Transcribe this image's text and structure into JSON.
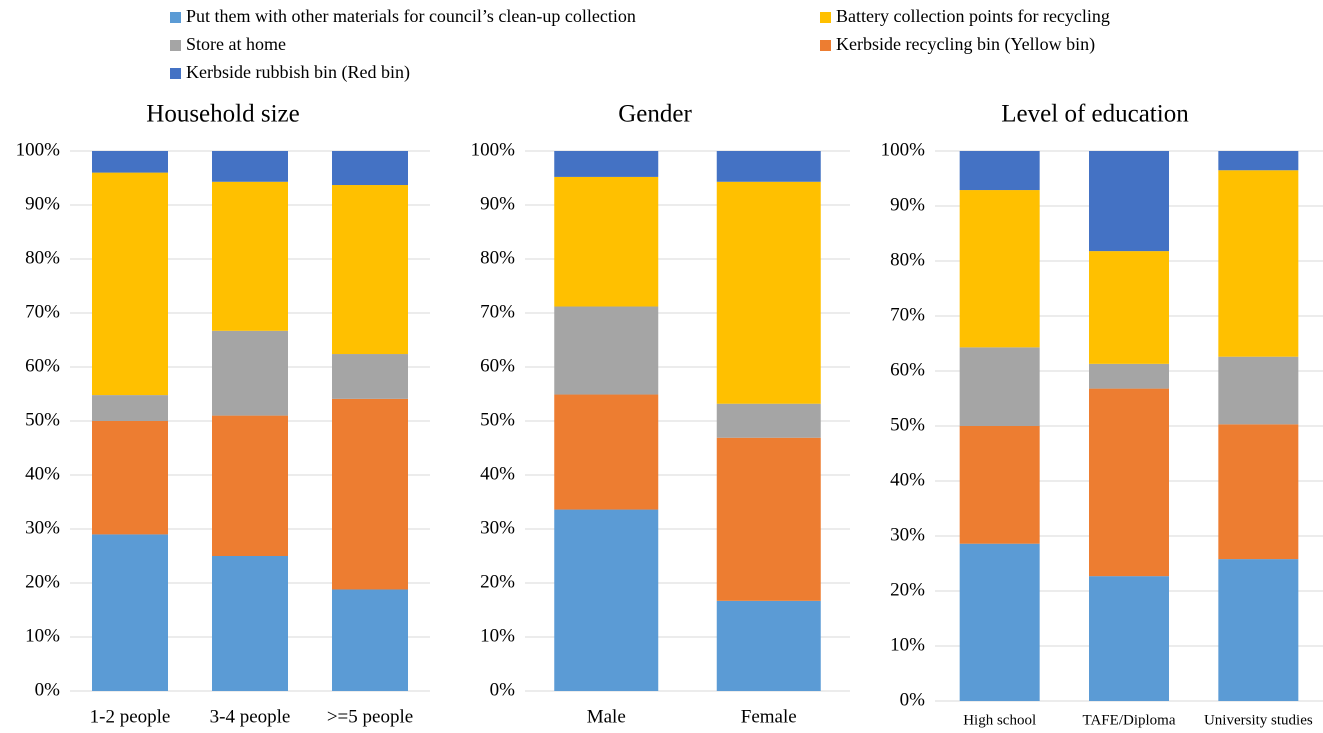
{
  "legend": [
    {
      "name": "Put them with other materials for council’s clean-up collection",
      "color": "#5b9bd5"
    },
    {
      "name": "Kerbside recycling bin (Yellow bin)",
      "color": "#ed7d31"
    },
    {
      "name": "Store at home",
      "color": "#a5a5a5"
    },
    {
      "name": "Battery collection points for recycling",
      "color": "#ffc000"
    },
    {
      "name": "Kerbside rubbish bin (Red bin)",
      "color": "#4472c4"
    }
  ],
  "chart_data": [
    {
      "type": "stacked_bar",
      "title": "Household size",
      "categories": [
        "1-2 people",
        "3-4 people",
        ">=5 people"
      ],
      "series": [
        {
          "values": [
            29,
            25,
            18.8
          ]
        },
        {
          "values": [
            21,
            26,
            35.3
          ]
        },
        {
          "values": [
            4.8,
            15.7,
            8.3
          ]
        },
        {
          "values": [
            41.2,
            27.6,
            31.3
          ]
        },
        {
          "values": [
            4,
            5.7,
            6.3
          ]
        }
      ],
      "ylim": [
        0,
        100
      ],
      "yticks": [
        {
          "value": 0,
          "label": "0%"
        },
        {
          "value": 10,
          "label": "10%"
        },
        {
          "value": 20,
          "label": "20%"
        },
        {
          "value": 30,
          "label": "30%"
        },
        {
          "value": 40,
          "label": "40%"
        },
        {
          "value": 50,
          "label": "50%"
        },
        {
          "value": 60,
          "label": "60%"
        },
        {
          "value": 70,
          "label": "70%"
        },
        {
          "value": 80,
          "label": "80%"
        },
        {
          "value": 90,
          "label": "90%"
        },
        {
          "value": 100,
          "label": "100%"
        }
      ],
      "grid": true
    },
    {
      "type": "stacked_bar",
      "title": "Gender",
      "categories": [
        "Male",
        "Female"
      ],
      "series": [
        {
          "values": [
            33.6,
            16.7
          ]
        },
        {
          "values": [
            21.3,
            30.2
          ]
        },
        {
          "values": [
            16.3,
            6.3
          ]
        },
        {
          "values": [
            24,
            41.1
          ]
        },
        {
          "values": [
            4.8,
            5.7
          ]
        }
      ],
      "ylim": [
        0,
        100
      ],
      "yticks": [
        {
          "value": 0,
          "label": "0%"
        },
        {
          "value": 10,
          "label": "10%"
        },
        {
          "value": 20,
          "label": "20%"
        },
        {
          "value": 30,
          "label": "30%"
        },
        {
          "value": 40,
          "label": "40%"
        },
        {
          "value": 50,
          "label": "50%"
        },
        {
          "value": 60,
          "label": "60%"
        },
        {
          "value": 70,
          "label": "70%"
        },
        {
          "value": 80,
          "label": "80%"
        },
        {
          "value": 90,
          "label": "90%"
        },
        {
          "value": 100,
          "label": "100%"
        }
      ],
      "grid": true
    },
    {
      "type": "stacked_bar",
      "title": "Level of education",
      "categories": [
        "High school",
        "TAFE/Diploma",
        "University studies"
      ],
      "series": [
        {
          "values": [
            28.6,
            22.7,
            25.8
          ]
        },
        {
          "values": [
            21.4,
            34.1,
            24.5
          ]
        },
        {
          "values": [
            14.3,
            4.5,
            12.3
          ]
        },
        {
          "values": [
            28.6,
            20.5,
            33.9
          ]
        },
        {
          "values": [
            7.1,
            18.2,
            3.5
          ]
        }
      ],
      "ylim": [
        0,
        100
      ],
      "yticks": [
        {
          "value": 0,
          "label": "0%"
        },
        {
          "value": 10,
          "label": "10%"
        },
        {
          "value": 20,
          "label": "20%"
        },
        {
          "value": 30,
          "label": "30%"
        },
        {
          "value": 40,
          "label": "40%"
        },
        {
          "value": 50,
          "label": "50%"
        },
        {
          "value": 60,
          "label": "60%"
        },
        {
          "value": 70,
          "label": "70%"
        },
        {
          "value": 80,
          "label": "80%"
        },
        {
          "value": 90,
          "label": "90%"
        },
        {
          "value": 100,
          "label": "100%"
        }
      ],
      "grid": true
    }
  ]
}
